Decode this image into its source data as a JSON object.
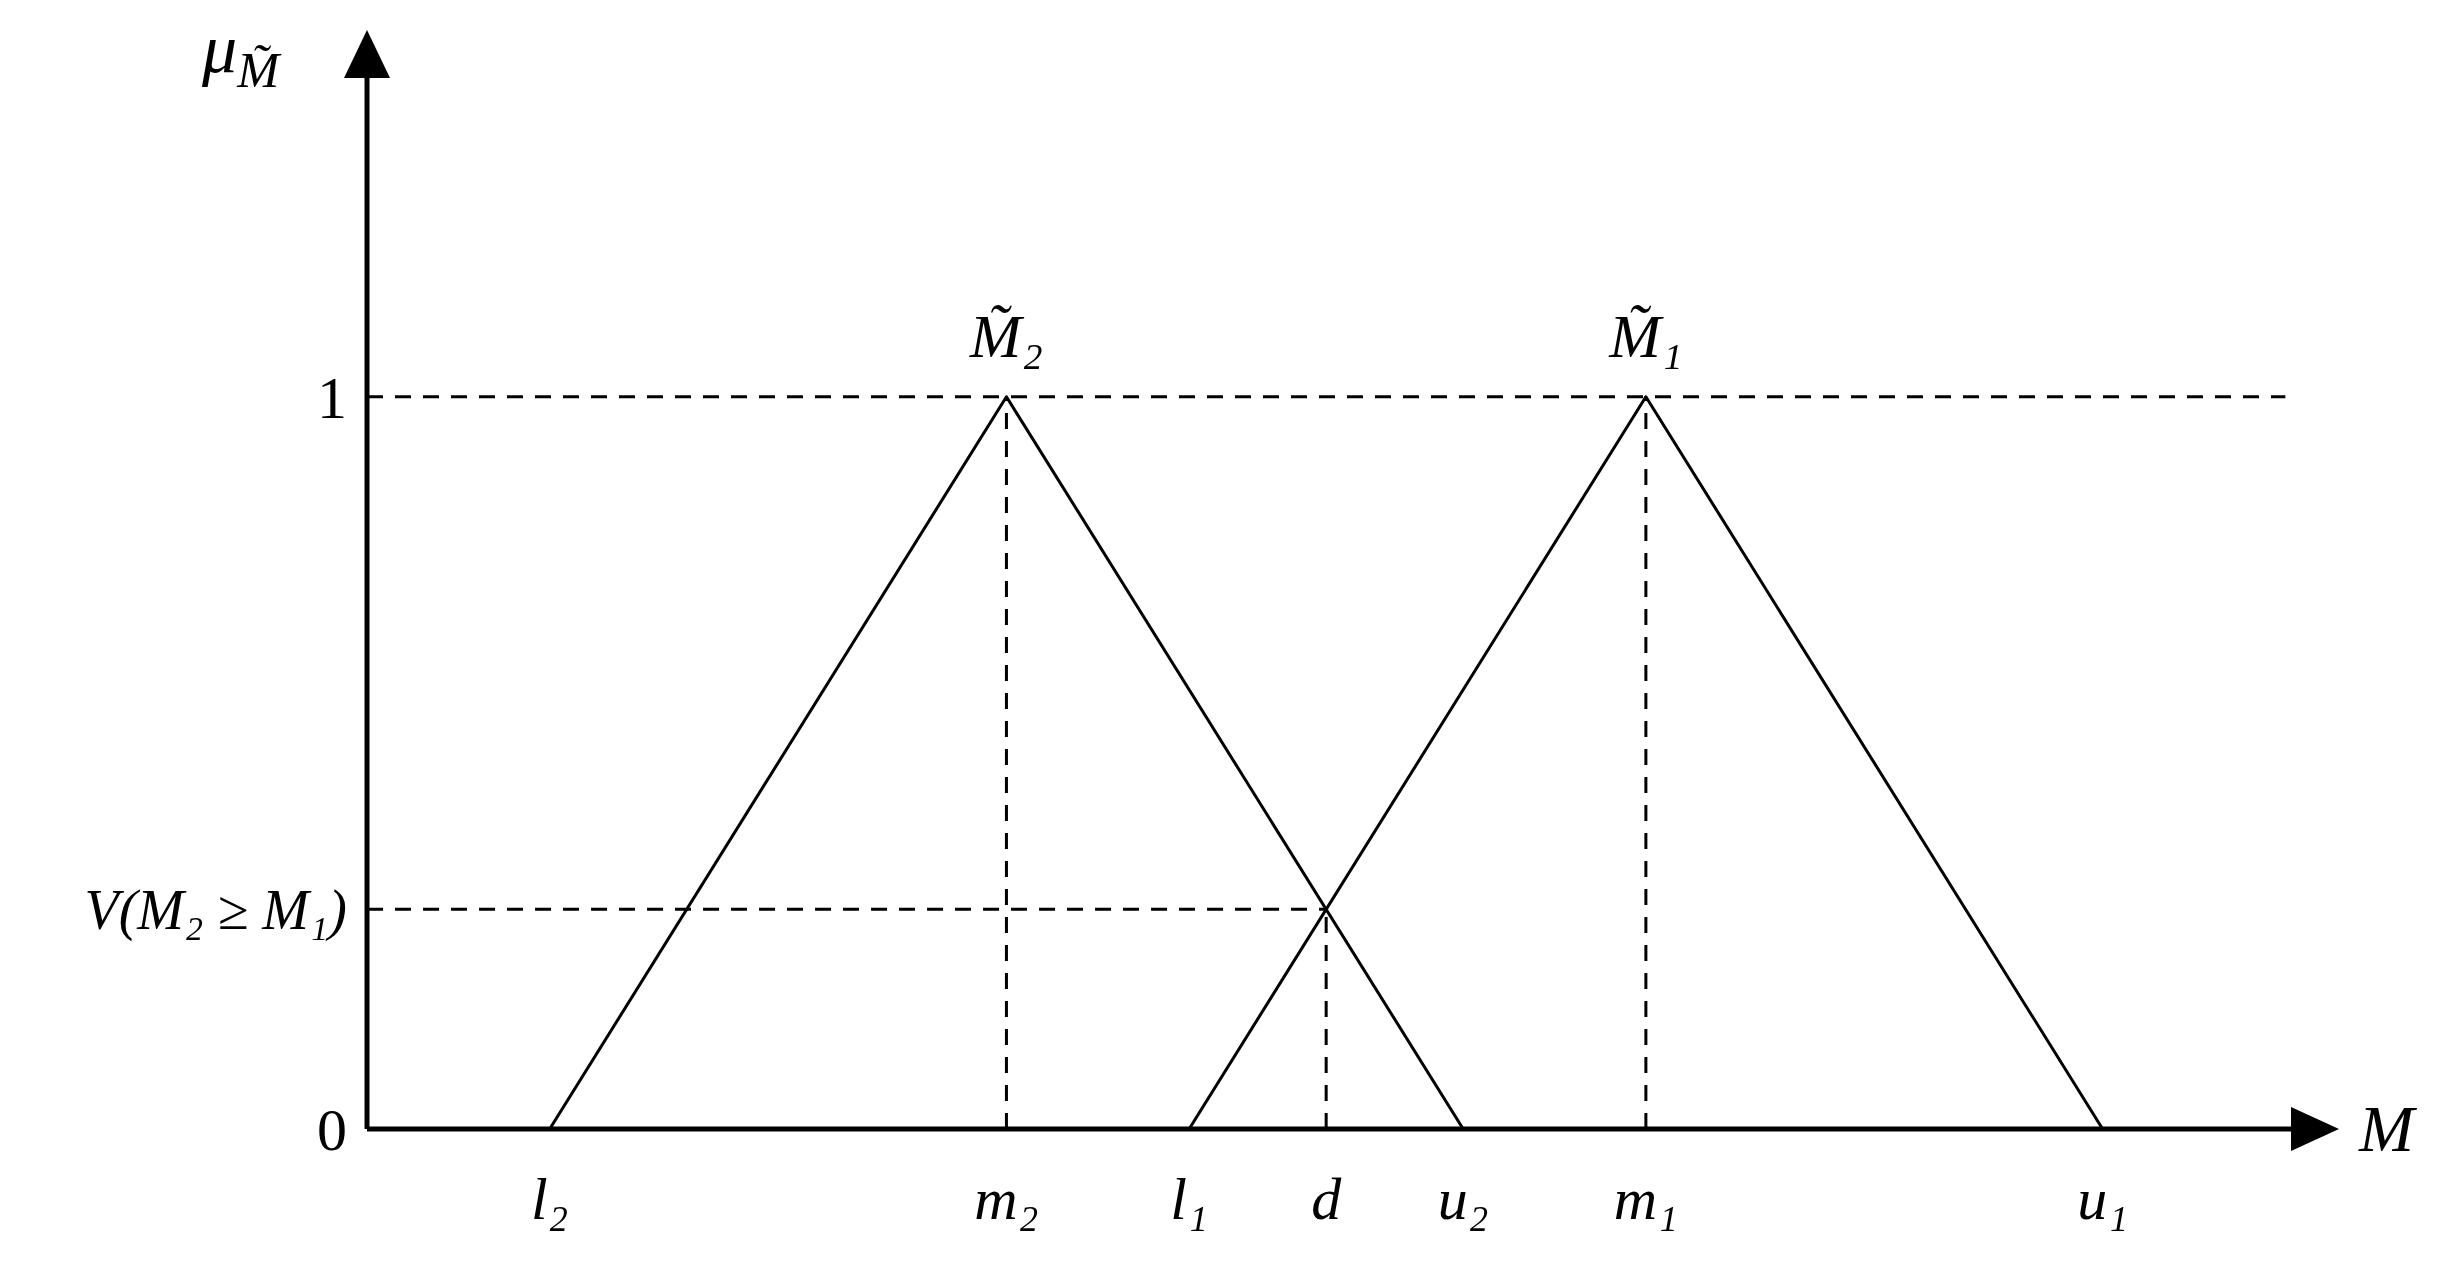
{
  "chart_data": {
    "type": "line",
    "xlabel": "M",
    "ylabel": "μ$_{M̃}$",
    "marker": "none",
    "categories": [
      null,
      null,
      null,
      null,
      "l₂",
      null,
      null,
      null,
      null,
      null,
      null,
      null,
      null,
      null,
      "m₂",
      null,
      null,
      null,
      "l₁",
      null,
      null,
      "d",
      null,
      null,
      "u₂",
      null,
      null,
      null,
      "m₁",
      null,
      null,
      null,
      null,
      null,
      null,
      null,
      null,
      null,
      "u₁",
      null,
      null,
      null,
      null,
      null
    ],
    "ylim": [
      0,
      1.49
    ],
    "yticks": [
      0,
      {
        "value": 0.3,
        "label": "V(M₂ ≥ M₁)"
      },
      1
    ],
    "series": [
      {
        "name": "M̃₂",
        "color": "#000000",
        "x": [
          "l₂",
          "m₂",
          "u₂"
        ],
        "values": [
          0,
          1,
          0
        ]
      },
      {
        "name": "M̃₁",
        "color": "#000000",
        "x": [
          "l₁",
          "m₁",
          "u₁"
        ],
        "values": [
          0,
          1,
          0
        ]
      },
      {
        "color": "#000000",
        "line_style": "dashed",
        "values": [
          1,
          1,
          1,
          1,
          1,
          1,
          1,
          1,
          1,
          1,
          1,
          1,
          1,
          1,
          1,
          1,
          1,
          1,
          1,
          1,
          1,
          1,
          1,
          1,
          1,
          1,
          1,
          1,
          1,
          1,
          1,
          1,
          1,
          1,
          1,
          1,
          1,
          1,
          1,
          1,
          1,
          1,
          1,
          null
        ]
      },
      {
        "color": "#000000",
        "line_style": "dashed",
        "values": [
          0.3,
          0.3,
          0.3,
          0.3,
          0.3,
          0.3,
          0.3,
          0.3,
          0.3,
          0.3,
          0.3,
          0.3,
          0.3,
          0.3,
          0.3,
          0.3,
          0.3,
          0.3,
          0.3,
          0.3,
          0.3,
          0.3,
          null,
          null,
          null,
          null,
          null,
          null,
          null,
          null,
          null,
          null,
          null,
          null,
          null,
          null,
          null,
          null,
          null,
          null,
          null,
          null,
          null,
          null
        ]
      },
      {
        "color": "#000000",
        "line_style": "dashed",
        "x": [
          "m₂",
          "m₂"
        ],
        "values": [
          0,
          1
        ]
      },
      {
        "color": "#000000",
        "line_style": "dashed",
        "x": [
          "d",
          "d"
        ],
        "values": [
          0,
          0.3
        ]
      },
      {
        "color": "#000000",
        "line_style": "dashed",
        "x": [
          "m₁",
          "m₁"
        ],
        "values": [
          0,
          1
        ]
      }
    ]
  }
}
